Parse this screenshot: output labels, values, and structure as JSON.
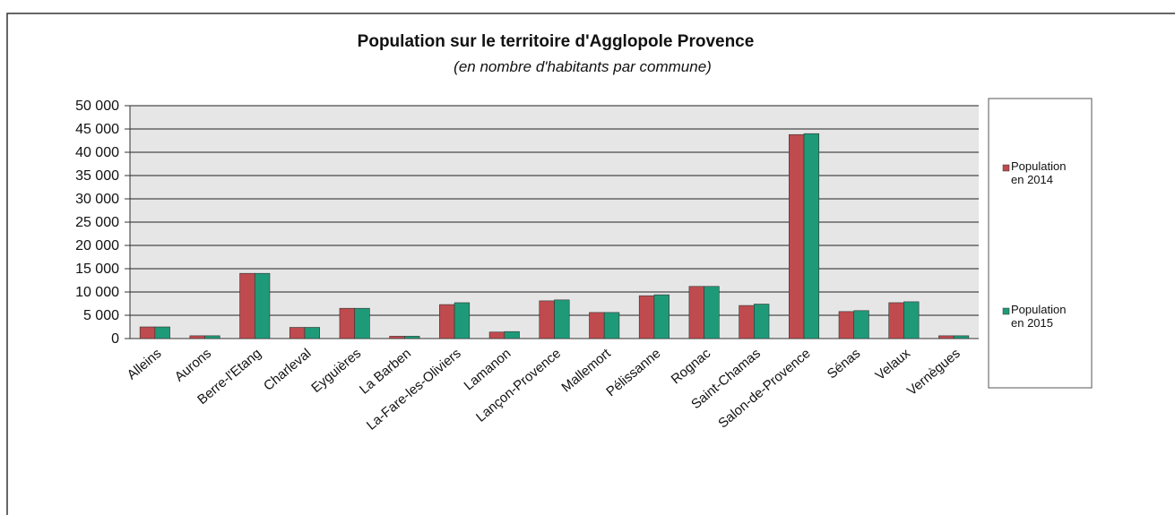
{
  "chart_data": {
    "type": "bar",
    "title": "Population sur le territoire d'Agglopole Provence",
    "subtitle": "(en nombre d'habitants par commune)",
    "categories": [
      "Alleins",
      "Aurons",
      "Berre-l'Etang",
      "Charleval",
      "Eyguières",
      "La Barben",
      "La-Fare-les-Oliviers",
      "Lamanon",
      "Lançon-Provence",
      "Mallemort",
      "Pélissanne",
      "Rognac",
      "Saint-Chamas",
      "Salon-de-Provence",
      "Sénas",
      "Velaux",
      "Vernègues"
    ],
    "series": [
      {
        "name": "Population en 2014",
        "color": "#bf4b4f",
        "values": [
          2500,
          600,
          14000,
          2400,
          6500,
          500,
          7300,
          1400,
          8100,
          5600,
          9200,
          11200,
          7100,
          43800,
          5800,
          7700,
          600
        ]
      },
      {
        "name": "Population en 2015",
        "color": "#1f9a78",
        "values": [
          2500,
          600,
          14000,
          2400,
          6500,
          500,
          7700,
          1500,
          8300,
          5600,
          9400,
          11200,
          7400,
          44000,
          6000,
          7900,
          600
        ]
      }
    ],
    "ylim": [
      0,
      50000
    ],
    "yticks": [
      0,
      {
        "value": 5000,
        "label": "5 000"
      },
      {
        "value": 10000,
        "label": "10 000"
      },
      {
        "value": 15000,
        "label": "15 000"
      },
      {
        "value": 20000,
        "label": "20 000"
      },
      {
        "value": 25000,
        "label": "25 000"
      },
      {
        "value": 30000,
        "label": "30 000"
      },
      {
        "value": 35000,
        "label": "35 000"
      },
      {
        "value": 40000,
        "label": "40 000"
      },
      {
        "value": 45000,
        "label": "45 000"
      },
      {
        "value": 50000,
        "label": "50 000"
      }
    ],
    "grid": true,
    "legend": "right"
  }
}
